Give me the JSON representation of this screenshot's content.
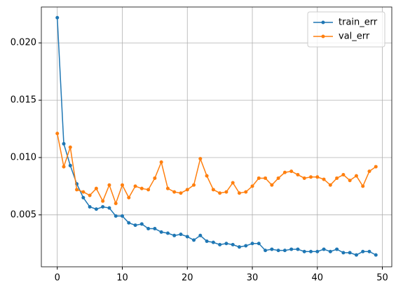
{
  "chart_data": {
    "type": "line",
    "x": [
      0,
      1,
      2,
      3,
      4,
      5,
      6,
      7,
      8,
      9,
      10,
      11,
      12,
      13,
      14,
      15,
      16,
      17,
      18,
      19,
      20,
      21,
      22,
      23,
      24,
      25,
      26,
      27,
      28,
      29,
      30,
      31,
      32,
      33,
      34,
      35,
      36,
      37,
      38,
      39,
      40,
      41,
      42,
      43,
      44,
      45,
      46,
      47,
      48,
      49
    ],
    "series": [
      {
        "name": "train_err",
        "color": "#1f77b4",
        "values": [
          0.0222,
          0.0112,
          0.0093,
          0.0077,
          0.0065,
          0.0057,
          0.0055,
          0.0057,
          0.0056,
          0.0049,
          0.0049,
          0.0043,
          0.0041,
          0.0042,
          0.0038,
          0.0038,
          0.0035,
          0.0034,
          0.0032,
          0.0033,
          0.0031,
          0.0028,
          0.0032,
          0.0027,
          0.0026,
          0.0024,
          0.0025,
          0.0024,
          0.0022,
          0.0023,
          0.0025,
          0.0025,
          0.0019,
          0.002,
          0.0019,
          0.0019,
          0.002,
          0.002,
          0.0018,
          0.0018,
          0.0018,
          0.002,
          0.0018,
          0.002,
          0.0017,
          0.0017,
          0.0015,
          0.0018,
          0.0018,
          0.0015
        ]
      },
      {
        "name": "val_err",
        "color": "#ff7f0e",
        "values": [
          0.0121,
          0.0092,
          0.0109,
          0.0072,
          0.007,
          0.0067,
          0.0073,
          0.0062,
          0.0076,
          0.006,
          0.0076,
          0.0065,
          0.0075,
          0.0073,
          0.0072,
          0.0082,
          0.0096,
          0.0073,
          0.007,
          0.0069,
          0.0072,
          0.0076,
          0.0099,
          0.0084,
          0.0072,
          0.0069,
          0.007,
          0.0078,
          0.0069,
          0.007,
          0.0075,
          0.0082,
          0.0082,
          0.0076,
          0.0082,
          0.0087,
          0.0088,
          0.0085,
          0.0082,
          0.0083,
          0.0083,
          0.0081,
          0.0076,
          0.0082,
          0.0085,
          0.008,
          0.0084,
          0.0075,
          0.0088,
          0.0092
        ]
      }
    ],
    "xlim": [
      -2.45,
      51.45
    ],
    "ylim": [
      0.00047,
      0.02313
    ],
    "xticks": [
      0,
      10,
      20,
      30,
      40,
      50
    ],
    "yticks": [
      0.005,
      {
        "value": 0.01,
        "label": "0.010"
      },
      0.015,
      {
        "value": 0.02,
        "label": "0.020"
      }
    ],
    "grid": true,
    "legend": "upper right"
  }
}
